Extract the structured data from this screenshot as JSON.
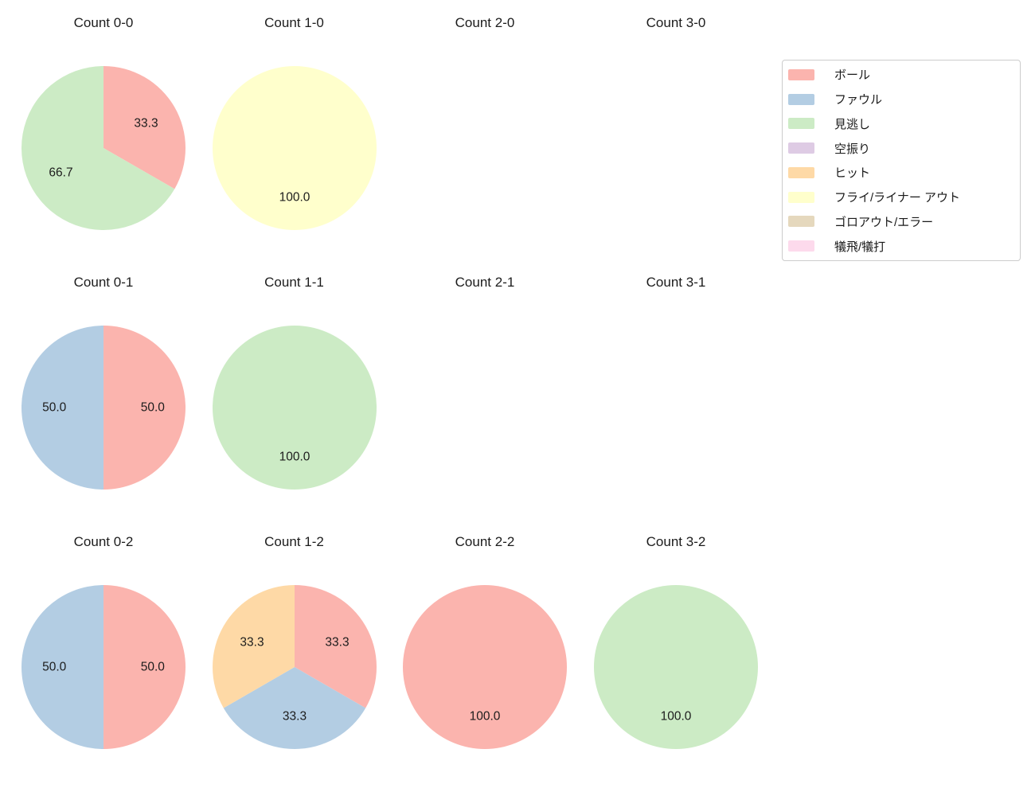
{
  "figure": {
    "background": "#ffffff",
    "text_color": "#1c1c1c"
  },
  "legend": {
    "position": "upper-right",
    "background": "#ffffff",
    "border_color": "#cccccc",
    "entries": [
      {
        "key": "ball",
        "label": "ボール",
        "color": "#fbb4ae"
      },
      {
        "key": "foul",
        "label": "ファウル",
        "color": "#b3cde3"
      },
      {
        "key": "called-strike",
        "label": "見逃し",
        "color": "#ccebc5"
      },
      {
        "key": "swinging-strike",
        "label": "空振り",
        "color": "#decbe4"
      },
      {
        "key": "hit",
        "label": "ヒット",
        "color": "#fed9a6"
      },
      {
        "key": "fly-liner-out",
        "label": "フライ/ライナー アウト",
        "color": "#ffffcc"
      },
      {
        "key": "ground-out-error",
        "label": "ゴロアウト/エラー",
        "color": "#e5d8bd"
      },
      {
        "key": "sac-fly-bunt",
        "label": "犠飛/犠打",
        "color": "#fddaec"
      }
    ]
  },
  "chart_data": {
    "type": "pie",
    "layout": "grid of 12 pie subplots (3 rows x 4 cols), some empty",
    "start_angle_deg": 90,
    "clockwise": true,
    "autopct_format": "%.1f",
    "label_radius_frac": 0.6,
    "palette": {
      "ball": "#fbb4ae",
      "foul": "#b3cde3",
      "called-strike": "#ccebc5",
      "swinging-strike": "#decbe4",
      "hit": "#fed9a6",
      "fly-liner-out": "#ffffcc",
      "ground-out-error": "#e5d8bd",
      "sac-fly-bunt": "#fddaec"
    },
    "charts": [
      {
        "title": "Count 0-0",
        "slices": [
          {
            "category": "ball",
            "value": 33.3,
            "text": "33.3"
          },
          {
            "category": "called-strike",
            "value": 66.7,
            "text": "66.7"
          }
        ]
      },
      {
        "title": "Count 1-0",
        "slices": [
          {
            "category": "fly-liner-out",
            "value": 100.0,
            "text": "100.0"
          }
        ]
      },
      {
        "title": "Count 2-0",
        "slices": []
      },
      {
        "title": "Count 3-0",
        "slices": []
      },
      {
        "title": "Count 0-1",
        "slices": [
          {
            "category": "ball",
            "value": 50.0,
            "text": "50.0"
          },
          {
            "category": "foul",
            "value": 50.0,
            "text": "50.0"
          }
        ]
      },
      {
        "title": "Count 1-1",
        "slices": [
          {
            "category": "called-strike",
            "value": 100.0,
            "text": "100.0"
          }
        ]
      },
      {
        "title": "Count 2-1",
        "slices": []
      },
      {
        "title": "Count 3-1",
        "slices": []
      },
      {
        "title": "Count 0-2",
        "slices": [
          {
            "category": "ball",
            "value": 50.0,
            "text": "50.0"
          },
          {
            "category": "foul",
            "value": 50.0,
            "text": "50.0"
          }
        ]
      },
      {
        "title": "Count 1-2",
        "slices": [
          {
            "category": "ball",
            "value": 33.3,
            "text": "33.3"
          },
          {
            "category": "foul",
            "value": 33.3,
            "text": "33.3"
          },
          {
            "category": "hit",
            "value": 33.3,
            "text": "33.3"
          }
        ]
      },
      {
        "title": "Count 2-2",
        "slices": [
          {
            "category": "ball",
            "value": 100.0,
            "text": "100.0"
          }
        ]
      },
      {
        "title": "Count 3-2",
        "slices": [
          {
            "category": "called-strike",
            "value": 100.0,
            "text": "100.0"
          }
        ]
      }
    ]
  }
}
